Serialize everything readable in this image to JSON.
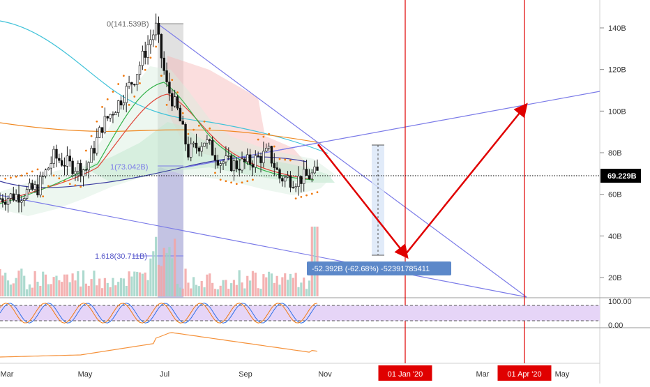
{
  "chart_data": {
    "type": "candlestick",
    "price_axis": {
      "ticks": [
        {
          "label": "140B",
          "value": 140
        },
        {
          "label": "120B",
          "value": 120
        },
        {
          "label": "100B",
          "value": 100
        },
        {
          "label": "80B",
          "value": 80
        },
        {
          "label": "60B",
          "value": 60
        },
        {
          "label": "40B",
          "value": 40
        },
        {
          "label": "20B",
          "value": 20
        }
      ],
      "current_price_label": "69.229B",
      "current_price": 69.229
    },
    "rsi_axis": {
      "ticks": [
        {
          "label": "100.00",
          "value": 100
        },
        {
          "label": "0.00",
          "value": 0
        }
      ]
    },
    "time_axis": {
      "ticks": [
        {
          "label": "Mar",
          "highlight": false
        },
        {
          "label": "May",
          "highlight": false
        },
        {
          "label": "Jul",
          "highlight": false
        },
        {
          "label": "Sep",
          "highlight": false
        },
        {
          "label": "Nov",
          "highlight": false
        },
        {
          "label": "01 Jan '20",
          "highlight": true
        },
        {
          "label": "Mar",
          "highlight": false
        },
        {
          "label": "01 Apr '20",
          "highlight": true
        },
        {
          "label": "May",
          "highlight": false
        }
      ]
    },
    "annotations": {
      "fib_top": "0(141.539B)",
      "fib_mid": "1(73.042B)",
      "fib_ext": "1.618(30.711B)",
      "measure": "-52.392B (-62.68%) -52391785411"
    },
    "price_path": [
      {
        "t": 0,
        "v": 58
      },
      {
        "t": 8,
        "v": 60
      },
      {
        "t": 14,
        "v": 63
      },
      {
        "t": 20,
        "v": 78
      },
      {
        "t": 26,
        "v": 74
      },
      {
        "t": 32,
        "v": 72
      },
      {
        "t": 38,
        "v": 93
      },
      {
        "t": 44,
        "v": 104
      },
      {
        "t": 50,
        "v": 116
      },
      {
        "t": 55,
        "v": 132
      },
      {
        "t": 58,
        "v": 140
      },
      {
        "t": 62,
        "v": 112
      },
      {
        "t": 66,
        "v": 100
      },
      {
        "t": 70,
        "v": 80
      },
      {
        "t": 76,
        "v": 86
      },
      {
        "t": 82,
        "v": 76
      },
      {
        "t": 88,
        "v": 74
      },
      {
        "t": 94,
        "v": 76
      },
      {
        "t": 100,
        "v": 80
      },
      {
        "t": 104,
        "v": 68
      },
      {
        "t": 110,
        "v": 67
      },
      {
        "t": 118,
        "v": 70
      }
    ],
    "projection": [
      {
        "label": "now",
        "value": 84
      },
      {
        "label": "01 Jan '20",
        "value": 31
      },
      {
        "label": "01 Apr '20",
        "value": 102
      }
    ],
    "colors": {
      "up": "#26a69a",
      "down": "#ef5350",
      "projection": "#e00000",
      "trendline": "#7b7be8",
      "date_line": "#e00000",
      "rsi_band": "#e6d5f7",
      "bottom_indicator": "#f5923b",
      "price_badge": "#000000",
      "measure_box": "#5c88c9"
    }
  }
}
